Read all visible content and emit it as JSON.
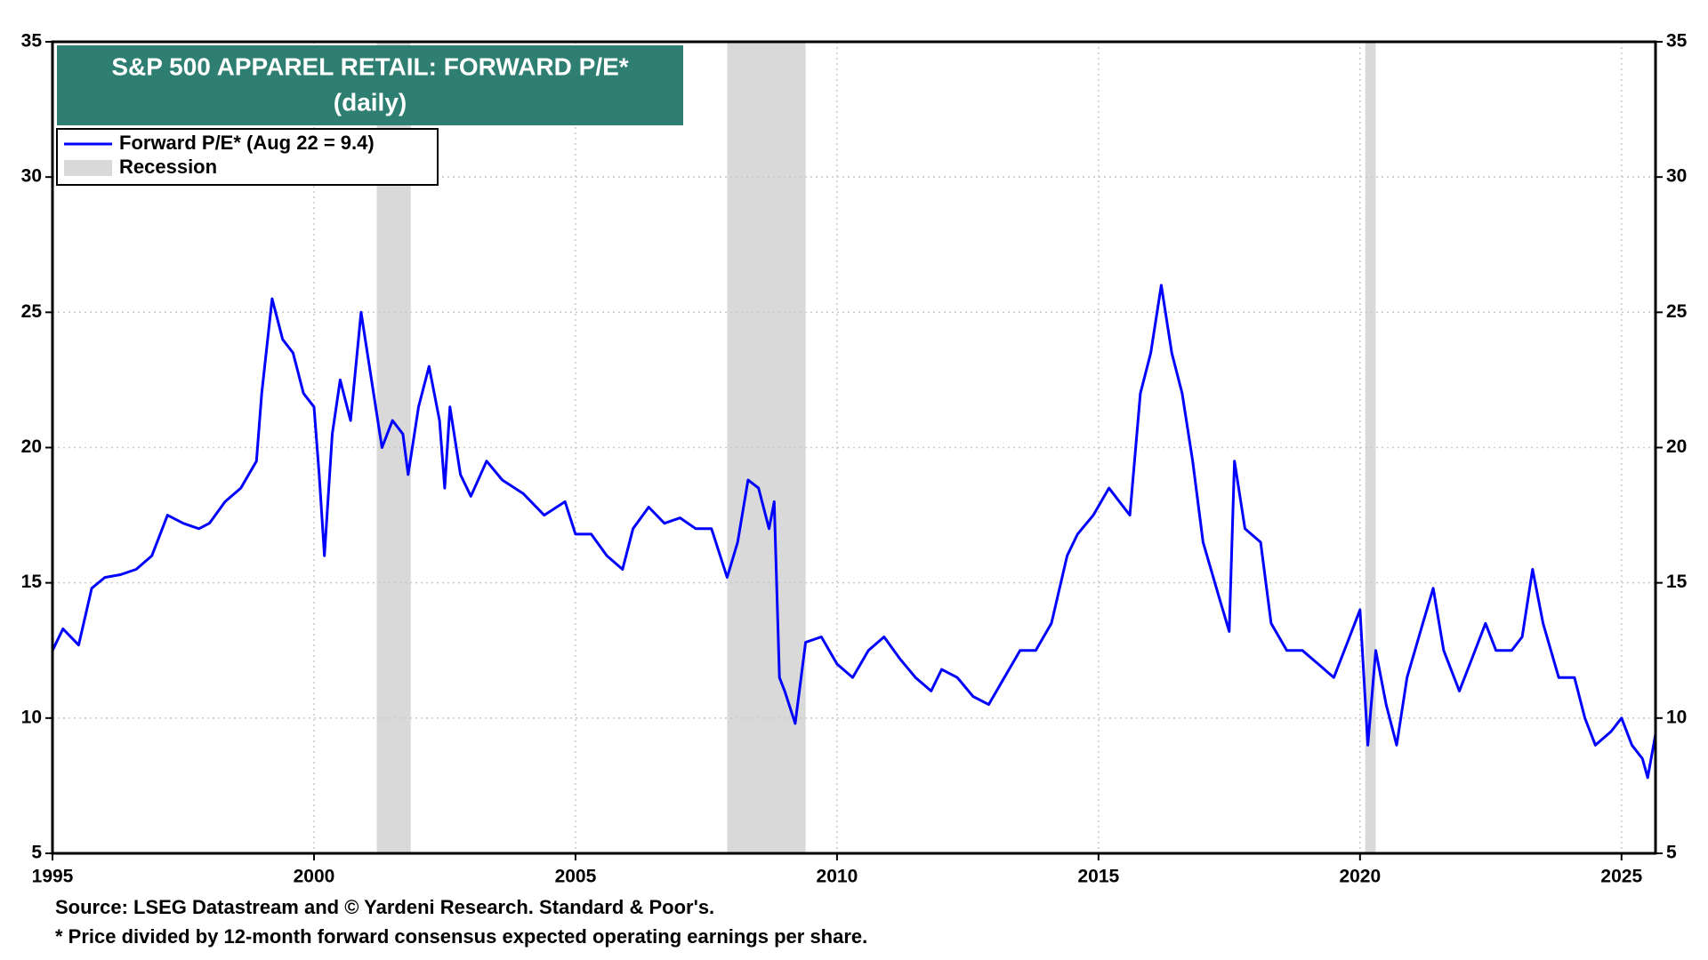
{
  "chart_data": {
    "type": "line",
    "title": "S&P 500 APPAREL RETAIL: FORWARD P/E*",
    "subtitle": "(daily)",
    "source": "Source: LSEG Datastream and © Yardeni Research. Standard & Poor's.",
    "footnote": "* Price divided by 12-month forward consensus expected operating earnings per share.",
    "xlim": [
      1995,
      2025.65
    ],
    "xticks": [
      1995,
      2000,
      2005,
      2010,
      2015,
      2020,
      2025
    ],
    "ylim": [
      5,
      35
    ],
    "yticks": [
      5,
      10,
      15,
      20,
      25,
      30,
      35
    ],
    "grid": true,
    "x": [
      1995.0,
      1995.2,
      1995.5,
      1995.75,
      1996.0,
      1996.3,
      1996.6,
      1996.9,
      1997.2,
      1997.5,
      1997.8,
      1998.0,
      1998.3,
      1998.6,
      1998.9,
      1999.0,
      1999.2,
      1999.4,
      1999.6,
      1999.8,
      2000.0,
      2000.1,
      2000.2,
      2000.35,
      2000.5,
      2000.7,
      2000.9,
      2001.1,
      2001.3,
      2001.5,
      2001.7,
      2001.8,
      2002.0,
      2002.2,
      2002.4,
      2002.5,
      2002.6,
      2002.8,
      2003.0,
      2003.3,
      2003.6,
      2004.0,
      2004.4,
      2004.8,
      2005.0,
      2005.3,
      2005.6,
      2005.9,
      2006.1,
      2006.4,
      2006.7,
      2007.0,
      2007.3,
      2007.6,
      2007.9,
      2008.1,
      2008.3,
      2008.5,
      2008.7,
      2008.8,
      2008.9,
      2009.0,
      2009.2,
      2009.4,
      2009.7,
      2010.0,
      2010.3,
      2010.6,
      2010.9,
      2011.2,
      2011.5,
      2011.8,
      2012.0,
      2012.3,
      2012.6,
      2012.9,
      2013.2,
      2013.5,
      2013.8,
      2014.1,
      2014.4,
      2014.6,
      2014.9,
      2015.2,
      2015.4,
      2015.6,
      2015.8,
      2016.0,
      2016.2,
      2016.4,
      2016.6,
      2016.8,
      2017.0,
      2017.3,
      2017.5,
      2017.6,
      2017.8,
      2018.1,
      2018.3,
      2018.6,
      2018.9,
      2019.2,
      2019.5,
      2019.8,
      2020.0,
      2020.15,
      2020.3,
      2020.5,
      2020.7,
      2020.9,
      2021.2,
      2021.4,
      2021.6,
      2021.9,
      2022.1,
      2022.4,
      2022.6,
      2022.9,
      2023.1,
      2023.3,
      2023.5,
      2023.8,
      2024.1,
      2024.3,
      2024.5,
      2024.8,
      2025.0,
      2025.2,
      2025.4,
      2025.5,
      2025.65
    ],
    "series": [
      {
        "name": "Forward P/E* (Aug 22 = 9.4)",
        "color": "#0000ff",
        "values": [
          12.5,
          13.3,
          12.7,
          14.8,
          15.2,
          15.3,
          15.5,
          16.0,
          17.5,
          17.2,
          17.0,
          17.2,
          18.0,
          18.5,
          19.5,
          22.0,
          25.5,
          24.0,
          23.5,
          22.0,
          21.5,
          19.0,
          16.0,
          20.5,
          22.5,
          21.0,
          25.0,
          22.5,
          20.0,
          21.0,
          20.5,
          19.0,
          21.5,
          23.0,
          21.0,
          18.5,
          21.5,
          19.0,
          18.2,
          19.5,
          18.8,
          18.3,
          17.5,
          18.0,
          16.8,
          16.8,
          16.0,
          15.5,
          17.0,
          17.8,
          17.2,
          17.4,
          17.0,
          17.0,
          15.2,
          16.5,
          18.8,
          18.5,
          17.0,
          18.0,
          11.5,
          11.0,
          9.8,
          12.8,
          13.0,
          12.0,
          11.5,
          12.5,
          13.0,
          12.2,
          11.5,
          11.0,
          11.8,
          11.5,
          10.8,
          10.5,
          11.5,
          12.5,
          12.5,
          13.5,
          16.0,
          16.8,
          17.5,
          18.5,
          18.0,
          17.5,
          22.0,
          23.5,
          26.0,
          23.5,
          22.0,
          19.5,
          16.5,
          14.5,
          13.2,
          19.5,
          17.0,
          16.5,
          13.5,
          12.5,
          12.5,
          12.0,
          11.5,
          13.0,
          14.0,
          9.0,
          12.5,
          10.5,
          9.0,
          11.5,
          13.5,
          14.8,
          12.5,
          11.0,
          12.0,
          13.5,
          12.5,
          12.5,
          13.0,
          15.5,
          13.5,
          11.5,
          11.5,
          10.0,
          9.0,
          9.5,
          10.0,
          9.0,
          8.5,
          7.8,
          9.4
        ]
      }
    ],
    "recession": {
      "name": "Recession",
      "color": "#d9d9d9",
      "periods": [
        [
          2001.2,
          2001.85
        ],
        [
          2007.9,
          2009.4
        ],
        [
          2020.1,
          2020.3
        ]
      ]
    }
  }
}
